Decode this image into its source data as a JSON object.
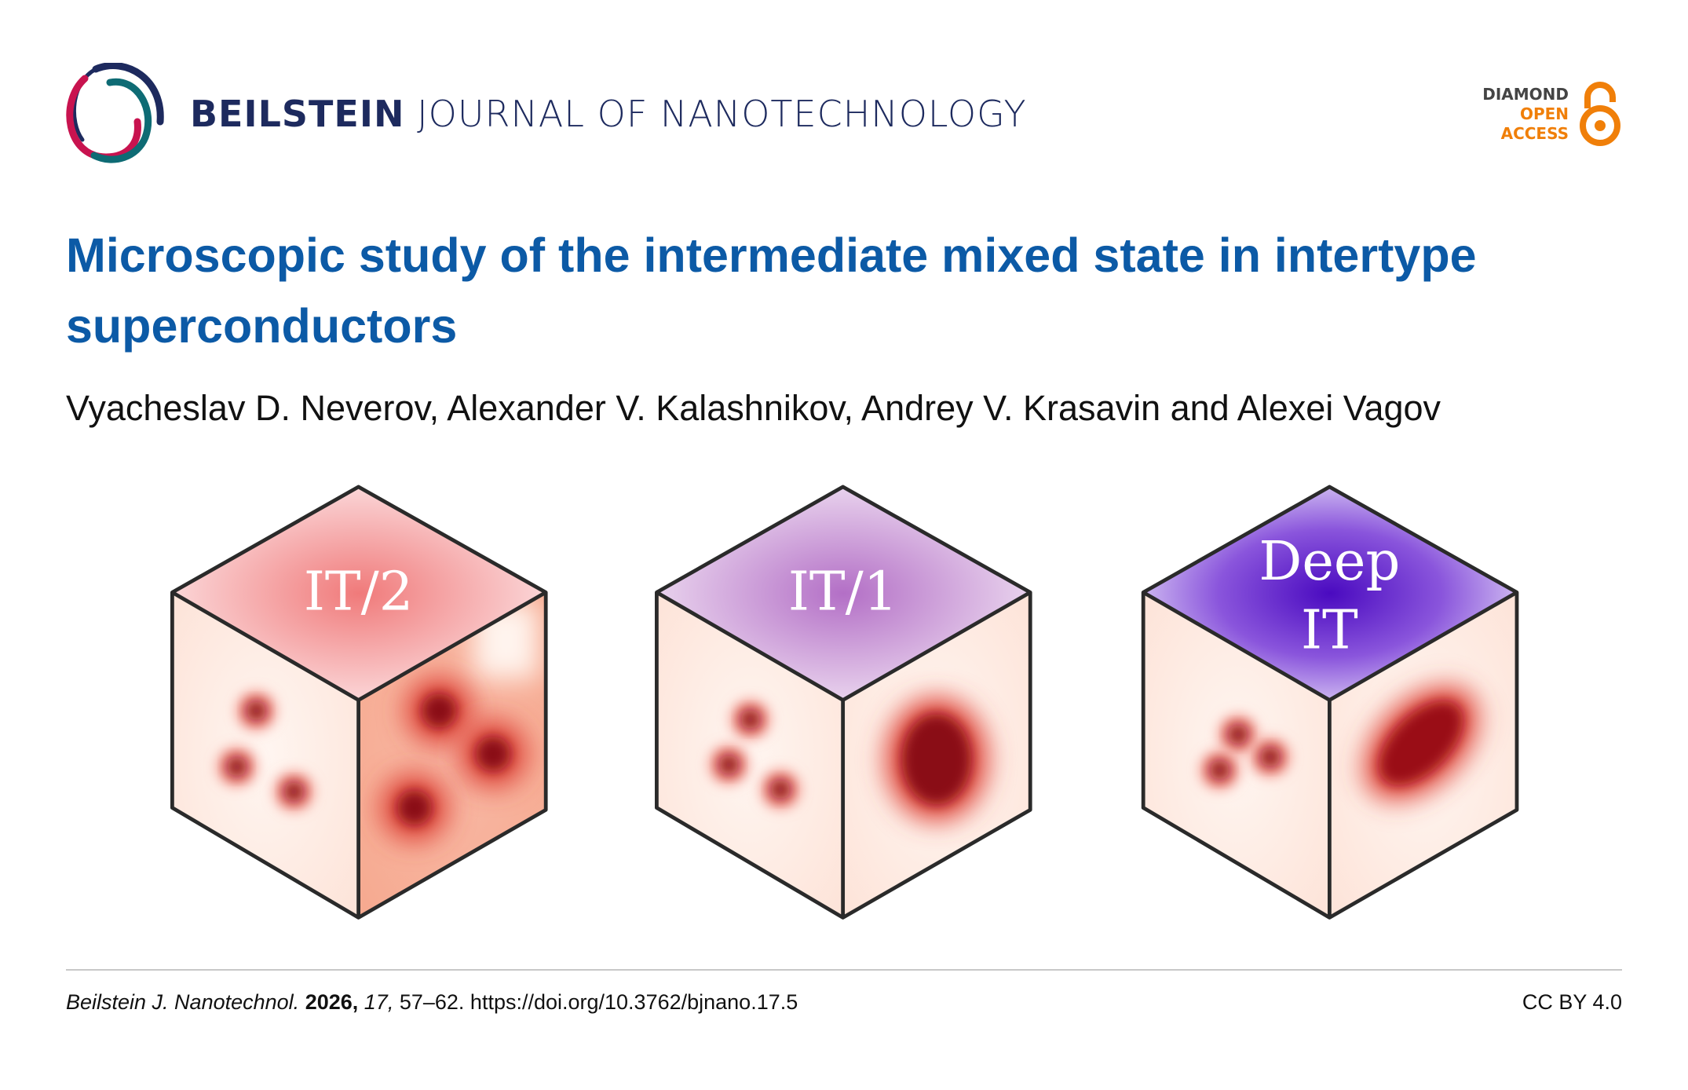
{
  "journal": {
    "brand_bold": "BEILSTEIN",
    "brand_light": "JOURNAL OF NANOTECHNOLOGY"
  },
  "open_access": {
    "line1": "DIAMOND",
    "line2": "OPEN",
    "line3": "ACCESS",
    "colors": {
      "orange": "#f07f09",
      "grey": "#444444"
    }
  },
  "article": {
    "title": "Microscopic study of the intermediate mixed state in intertype superconductors",
    "authors": "Vyacheslav D. Neverov, Alexander V. Kalashnikov, Andrey V. Krasavin and Alexei Vagov"
  },
  "figure": {
    "cubes": [
      {
        "label_lines": [
          "IT/2"
        ],
        "top_color": "#f07a7a"
      },
      {
        "label_lines": [
          "IT/1"
        ],
        "top_color": "#b36fc6"
      },
      {
        "label_lines": [
          "Deep",
          "IT"
        ],
        "top_color": "#5a18c9"
      }
    ]
  },
  "footer": {
    "journal_abbrev": "Beilstein J. Nanotechnol.",
    "year": "2026,",
    "volume": "17,",
    "pages_doi": "57–62. https://doi.org/10.3762/bjnano.17.5",
    "license": "CC BY 4.0"
  },
  "colors": {
    "title_blue": "#0c5aa6",
    "brand_navy": "#1d2a5e",
    "logo_red": "#c8134f",
    "logo_teal": "#0e6b74"
  }
}
